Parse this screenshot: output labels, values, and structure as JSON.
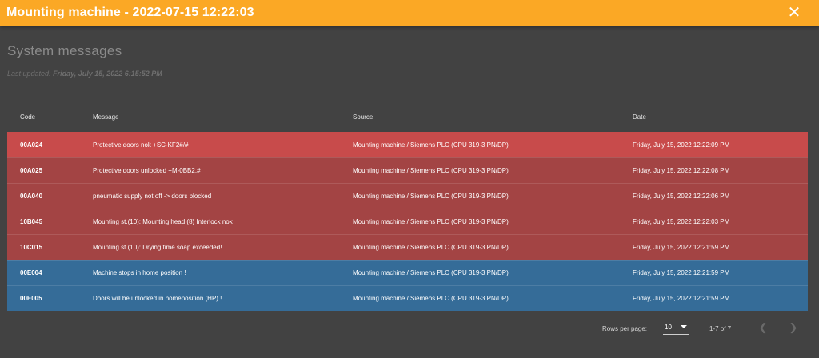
{
  "window": {
    "title": "Mounting machine - 2022-07-15 12:22:03",
    "close_icon": "close-icon"
  },
  "page": {
    "title": "System messages",
    "last_updated_label": "Last updated:",
    "last_updated_value": "Friday, July 15, 2022 6:15:52 PM"
  },
  "table": {
    "columns": [
      "Code",
      "Message",
      "Source",
      "Date"
    ],
    "rows": [
      {
        "code": "00A024",
        "message": "Protective doors nok +SC-KF2#/#",
        "source": "Mounting machine / Siemens PLC (CPU 319-3 PN/DP)",
        "date": "Friday, July 15, 2022 12:22:09 PM",
        "color": "#c84b4b"
      },
      {
        "code": "00A025",
        "message": "Protective doors unlocked +M-0BB2.#",
        "source": "Mounting machine / Siemens PLC (CPU 319-3 PN/DP)",
        "date": "Friday, July 15, 2022 12:22:08 PM",
        "color": "#a34444"
      },
      {
        "code": "00A040",
        "message": "pneumatic supply not off -> doors blocked",
        "source": "Mounting machine / Siemens PLC (CPU 319-3 PN/DP)",
        "date": "Friday, July 15, 2022 12:22:06 PM",
        "color": "#a34444"
      },
      {
        "code": "10B045",
        "message": "Mounting st.(10): Mounting head (8) Interlock nok",
        "source": "Mounting machine / Siemens PLC (CPU 319-3 PN/DP)",
        "date": "Friday, July 15, 2022 12:22:03 PM",
        "color": "#a34444"
      },
      {
        "code": "10C015",
        "message": "Mounting st.(10): Drying time soap exceeded!",
        "source": "Mounting machine / Siemens PLC (CPU 319-3 PN/DP)",
        "date": "Friday, July 15, 2022 12:21:59 PM",
        "color": "#a34444"
      },
      {
        "code": "00E004",
        "message": "Machine stops in home position !",
        "source": "Mounting machine / Siemens PLC (CPU 319-3 PN/DP)",
        "date": "Friday, July 15, 2022 12:21:59 PM",
        "color": "#356c98"
      },
      {
        "code": "00E005",
        "message": "Doors will be unlocked in homeposition (HP) !",
        "source": "Mounting machine / Siemens PLC (CPU 319-3 PN/DP)",
        "date": "Friday, July 15, 2022 12:21:59 PM",
        "color": "#356c98"
      }
    ]
  },
  "pagination": {
    "rows_per_page_label": "Rows per page:",
    "rows_per_page_value": "10",
    "range": "1-7 of 7",
    "prev_icon": "chevron-left-icon",
    "next_icon": "chevron-right-icon"
  }
}
